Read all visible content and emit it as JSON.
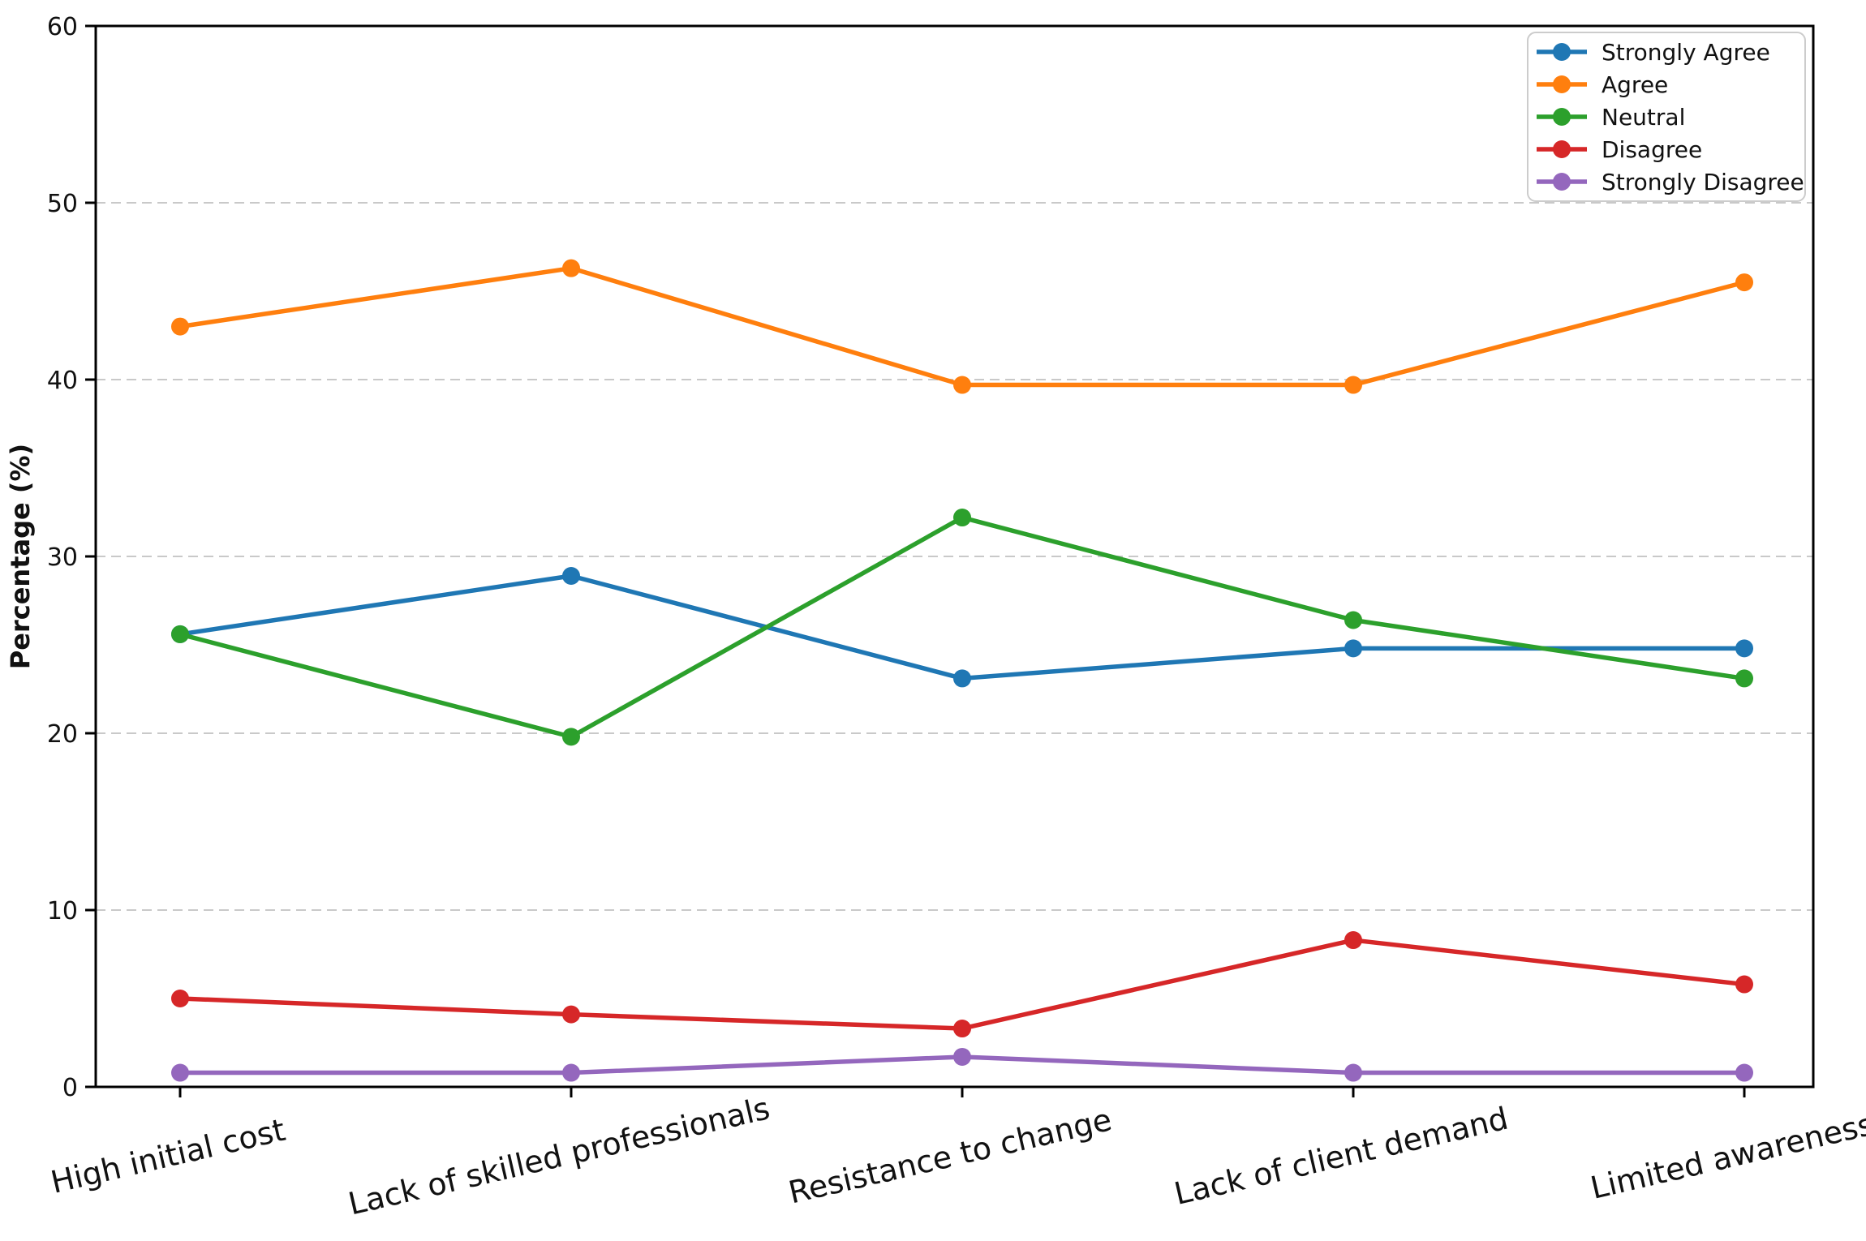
{
  "chart_data": {
    "type": "line",
    "title": "",
    "xlabel": "",
    "ylabel": "Percentage (%)",
    "ylim": [
      0,
      60
    ],
    "yticks": [
      0,
      10,
      20,
      30,
      40,
      50,
      60
    ],
    "grid": "horizontal dashed gridlines",
    "legend_position": "upper-right",
    "marker": "circle",
    "x_tick_rotation_deg": 13,
    "background_color": "#ffffff",
    "grid_color": "#c9c9c9",
    "spine_color": "#000000",
    "categories": [
      "High initial cost",
      "Lack of skilled professionals",
      "Resistance to change",
      "Lack of client demand",
      "Limited awareness"
    ],
    "series": [
      {
        "name": "Strongly Agree",
        "color": "#1f77b4",
        "values": [
          25.6,
          28.9,
          23.1,
          24.8,
          24.8
        ]
      },
      {
        "name": "Agree",
        "color": "#ff7f0e",
        "values": [
          43.0,
          46.3,
          39.7,
          39.7,
          45.5
        ]
      },
      {
        "name": "Neutral",
        "color": "#2ca02c",
        "values": [
          25.6,
          19.8,
          32.2,
          26.4,
          23.1
        ]
      },
      {
        "name": "Disagree",
        "color": "#d62728",
        "values": [
          5.0,
          4.1,
          3.3,
          8.3,
          5.8
        ]
      },
      {
        "name": "Strongly Disagree",
        "color": "#9467bd",
        "values": [
          0.8,
          0.8,
          1.7,
          0.8,
          0.8
        ]
      }
    ]
  }
}
